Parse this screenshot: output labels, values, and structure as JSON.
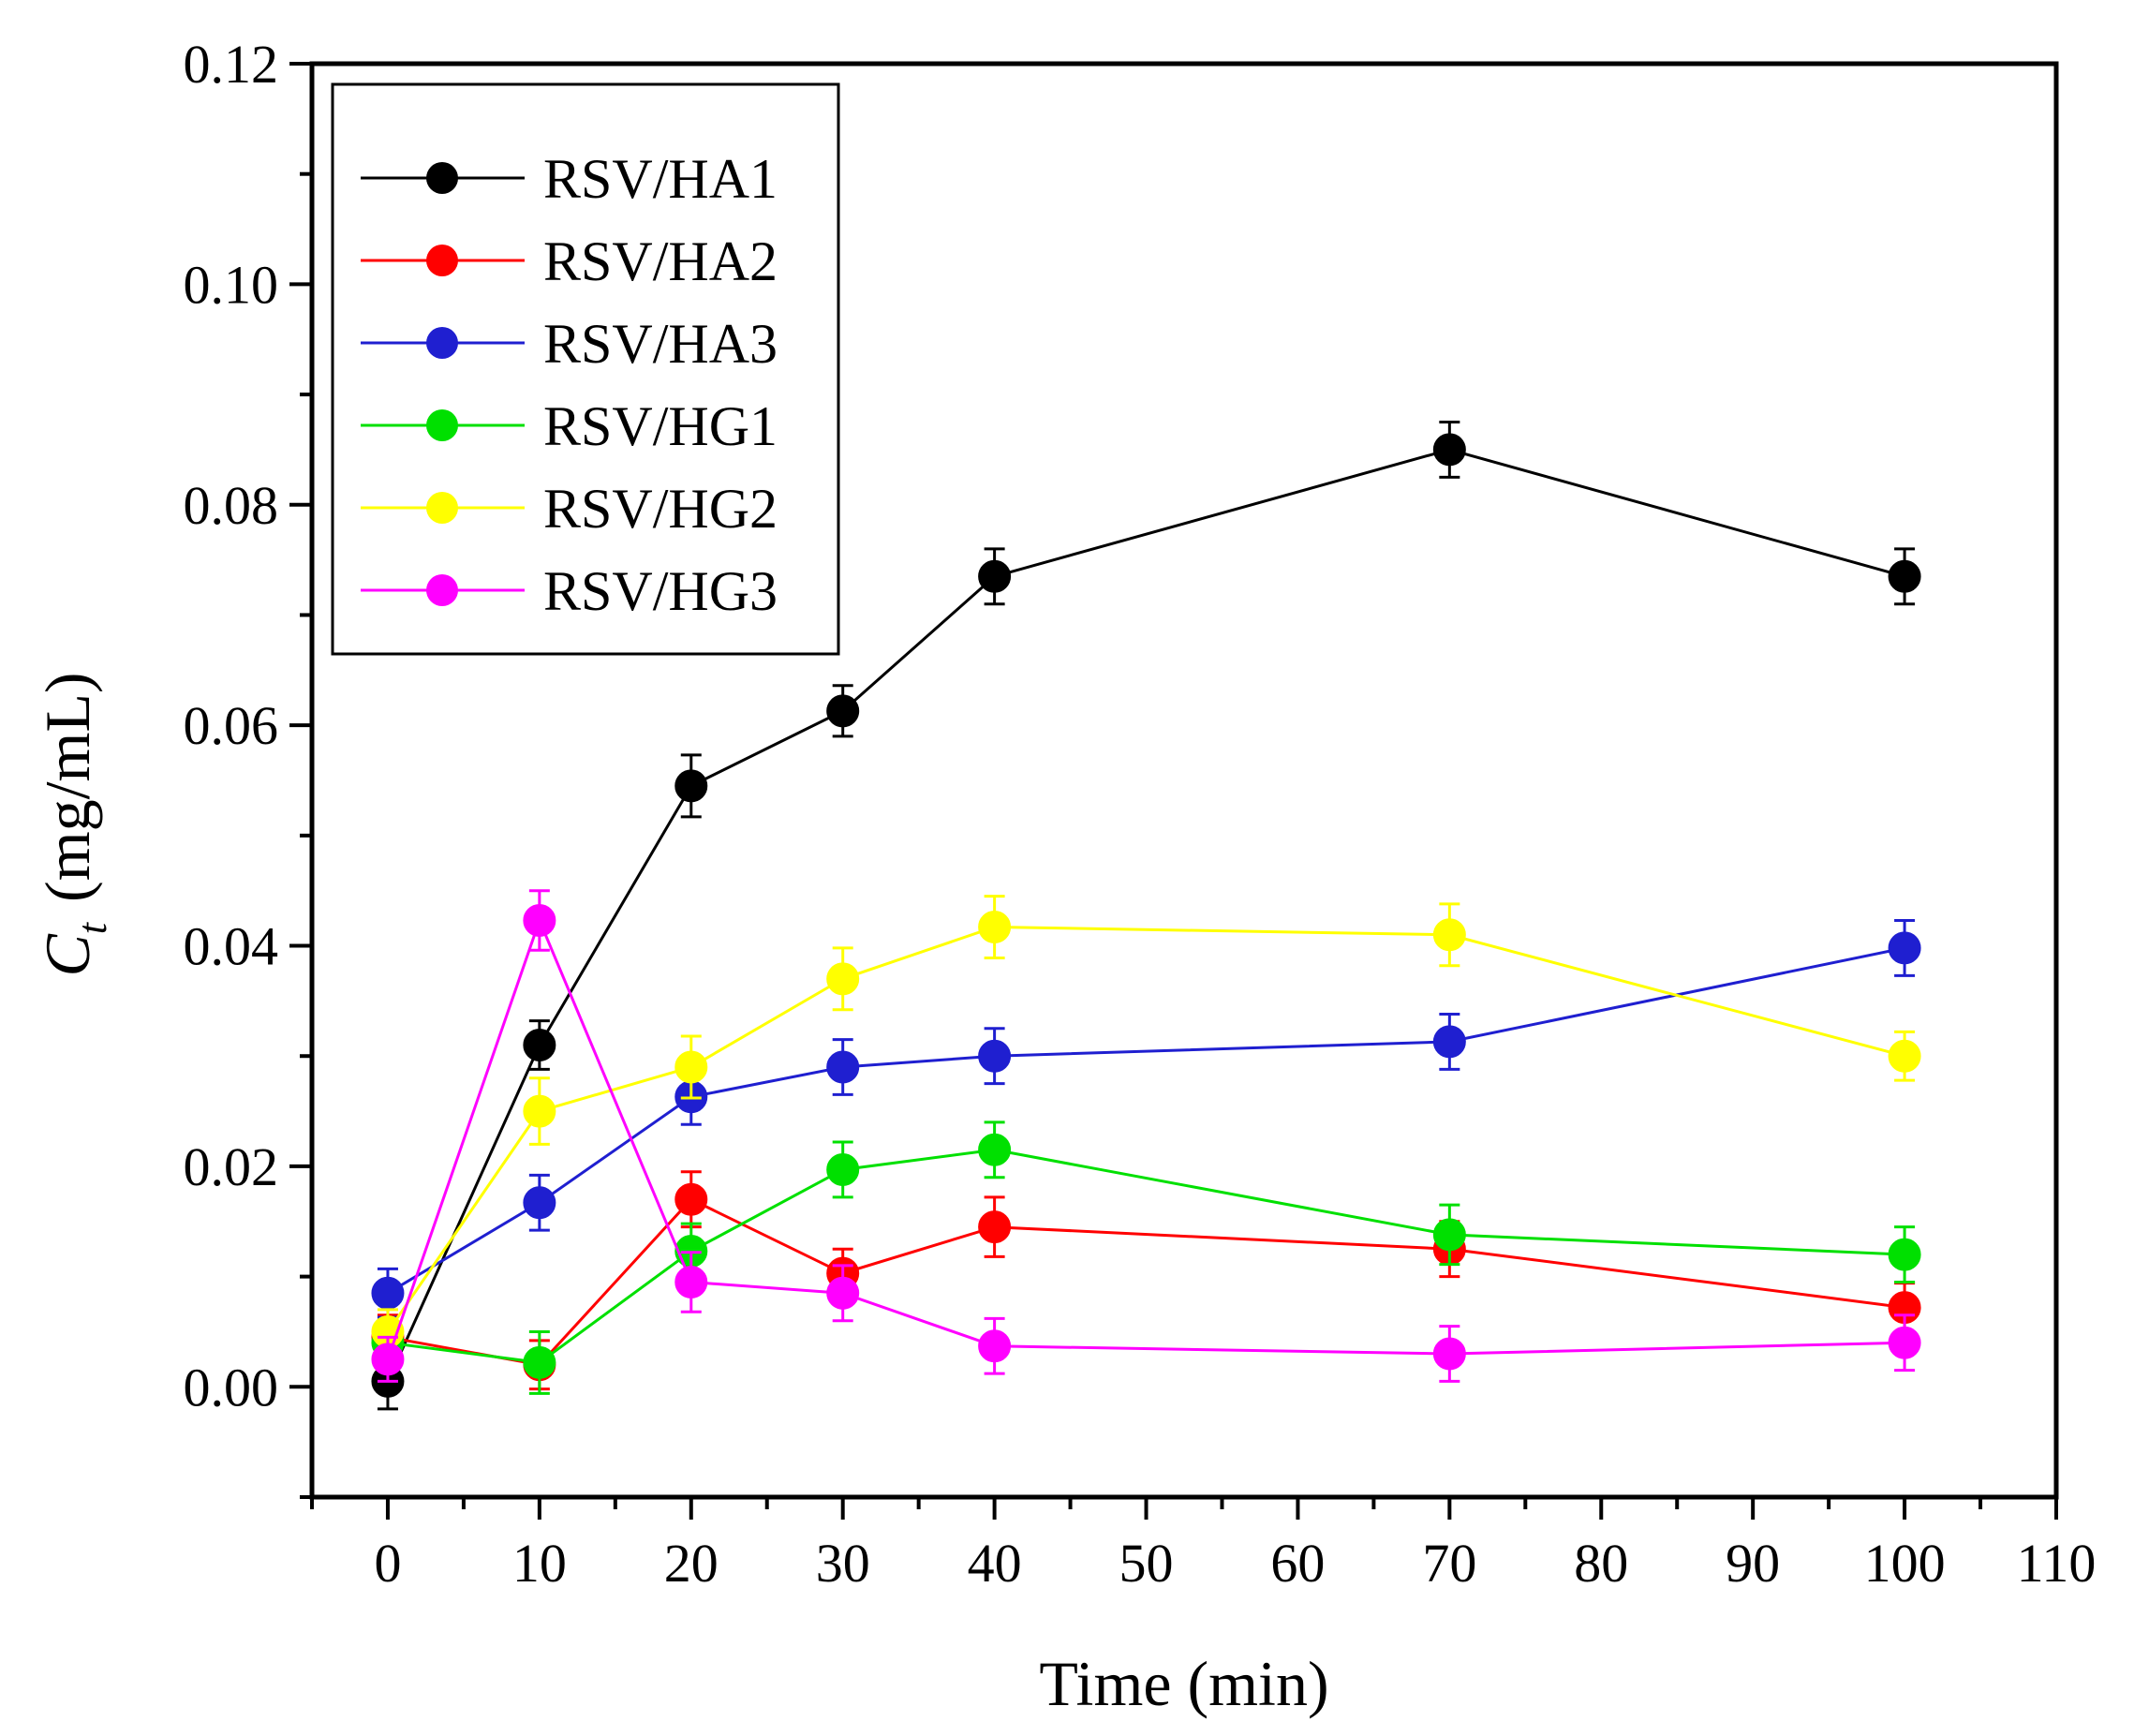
{
  "chart_data": {
    "type": "line",
    "title": "",
    "xlabel": "Time (min)",
    "ylabel_main": "C",
    "ylabel_sub": "t",
    "ylabel_unit": "(mg/mL)",
    "xlim": [
      -5,
      110
    ],
    "ylim": [
      -0.01,
      0.12
    ],
    "x_ticks": [
      0,
      10,
      20,
      30,
      40,
      50,
      60,
      70,
      80,
      90,
      100,
      110
    ],
    "x_tick_labels": [
      "0",
      "10",
      "20",
      "30",
      "40",
      "50",
      "60",
      "70",
      "80",
      "90",
      "100",
      "110"
    ],
    "y_ticks": [
      0.0,
      0.02,
      0.04,
      0.06,
      0.08,
      0.1,
      0.12
    ],
    "y_tick_labels": [
      "0.00",
      "0.02",
      "0.04",
      "0.06",
      "0.08",
      "0.10",
      "0.12"
    ],
    "grid": false,
    "legend_position": "top-left",
    "x": [
      0,
      10,
      20,
      30,
      40,
      70,
      100
    ],
    "series": [
      {
        "name": "RSV/HA1",
        "color": "#000000",
        "values": [
          0.0005,
          0.031,
          0.0545,
          0.0613,
          0.0735,
          0.085,
          0.0735
        ],
        "errors": [
          0.0025,
          0.0022,
          0.0028,
          0.0023,
          0.0025,
          0.0025,
          0.0025
        ]
      },
      {
        "name": "RSV/HA2",
        "color": "#ff0000",
        "values": [
          0.0045,
          0.002,
          0.017,
          0.0103,
          0.0145,
          0.0125,
          0.0072
        ],
        "errors": [
          0.002,
          0.0022,
          0.0025,
          0.0022,
          0.0027,
          0.0025,
          0.0022
        ]
      },
      {
        "name": "RSV/HA3",
        "color": "#1f1fd0",
        "values": [
          0.0085,
          0.0167,
          0.0263,
          0.029,
          0.03,
          0.0313,
          0.0398
        ],
        "errors": [
          0.0022,
          0.0025,
          0.0025,
          0.0025,
          0.0025,
          0.0025,
          0.0025
        ]
      },
      {
        "name": "RSV/HG1",
        "color": "#00e000",
        "values": [
          0.004,
          0.0022,
          0.0123,
          0.0197,
          0.0215,
          0.0138,
          0.012
        ],
        "errors": [
          0.002,
          0.0028,
          0.0025,
          0.0025,
          0.0025,
          0.0027,
          0.0025
        ]
      },
      {
        "name": "RSV/HG2",
        "color": "#ffff00",
        "values": [
          0.005,
          0.025,
          0.029,
          0.037,
          0.0417,
          0.041,
          0.03
        ],
        "errors": [
          0.002,
          0.003,
          0.0028,
          0.0028,
          0.0028,
          0.0028,
          0.0022
        ]
      },
      {
        "name": "RSV/HG3",
        "color": "#ff00ff",
        "values": [
          0.0025,
          0.0423,
          0.0095,
          0.0085,
          0.0037,
          0.003,
          0.004
        ],
        "errors": [
          0.002,
          0.0027,
          0.0027,
          0.0025,
          0.0025,
          0.0025,
          0.0025
        ]
      }
    ]
  }
}
